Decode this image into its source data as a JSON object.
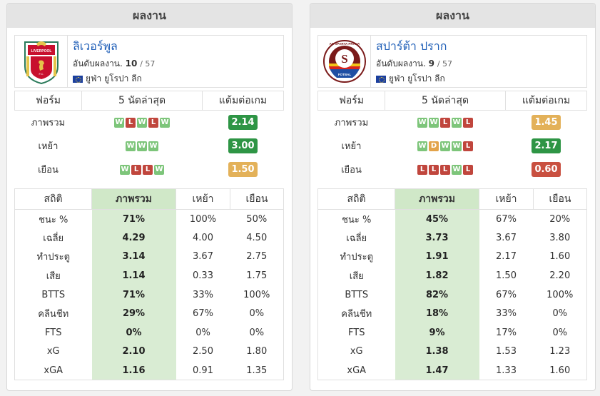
{
  "panels": [
    {
      "header": "ผลงาน",
      "team": {
        "name": "ลิเวอร์พูล",
        "rank_label": "อันดับผลงาน.",
        "rank": "10",
        "rank_total": "/ 57",
        "league": "ยูฟ่า ยูโรปา ลีก",
        "crest_icon": "liverpool-crest-icon",
        "crest_text": "LIVERPOOL",
        "crest_sub": "F.C."
      },
      "form_table": {
        "headers": [
          "ฟอร์ม",
          "5 นัดล่าสุด",
          "แต้มต่อเกม"
        ],
        "rows": [
          {
            "label": "ภาพรวม",
            "results": [
              "W",
              "L",
              "W",
              "L",
              "W"
            ],
            "ppg": "2.14",
            "ppg_color": "green"
          },
          {
            "label": "เหย้า",
            "results": [
              "W",
              "W",
              "W"
            ],
            "ppg": "3.00",
            "ppg_color": "green"
          },
          {
            "label": "เยือน",
            "results": [
              "W",
              "L",
              "L",
              "W"
            ],
            "ppg": "1.50",
            "ppg_color": "orange"
          }
        ]
      },
      "stats_table": {
        "headers": [
          "สถิติ",
          "ภาพรวม",
          "เหย้า",
          "เยือน"
        ],
        "rows": [
          [
            "ชนะ %",
            "71%",
            "100%",
            "50%"
          ],
          [
            "เฉลี่ย",
            "4.29",
            "4.00",
            "4.50"
          ],
          [
            "ทำประตู",
            "3.14",
            "3.67",
            "2.75"
          ],
          [
            "เสีย",
            "1.14",
            "0.33",
            "1.75"
          ],
          [
            "BTTS",
            "71%",
            "33%",
            "100%"
          ],
          [
            "คลีนชีท",
            "29%",
            "67%",
            "0%"
          ],
          [
            "FTS",
            "0%",
            "0%",
            "0%"
          ],
          [
            "xG",
            "2.10",
            "2.50",
            "1.80"
          ],
          [
            "xGA",
            "1.16",
            "0.91",
            "1.35"
          ]
        ]
      }
    },
    {
      "header": "ผลงาน",
      "team": {
        "name": "สปาร์ต้า ปราก",
        "rank_label": "อันดับผลงาน.",
        "rank": "9",
        "rank_total": "/ 57",
        "league": "ยูฟ่า ยูโรปา ลีก",
        "crest_icon": "sparta-prague-crest-icon",
        "crest_text": "AC SPARTA PRAHA",
        "crest_sub": "FOTBAL"
      },
      "form_table": {
        "headers": [
          "ฟอร์ม",
          "5 นัดล่าสุด",
          "แต้มต่อเกม"
        ],
        "rows": [
          {
            "label": "ภาพรวม",
            "results": [
              "W",
              "W",
              "L",
              "W",
              "L"
            ],
            "ppg": "1.45",
            "ppg_color": "orange"
          },
          {
            "label": "เหย้า",
            "results": [
              "W",
              "D",
              "W",
              "W",
              "L"
            ],
            "ppg": "2.17",
            "ppg_color": "green"
          },
          {
            "label": "เยือน",
            "results": [
              "L",
              "L",
              "L",
              "W",
              "L"
            ],
            "ppg": "0.60",
            "ppg_color": "red"
          }
        ]
      },
      "stats_table": {
        "headers": [
          "สถิติ",
          "ภาพรวม",
          "เหย้า",
          "เยือน"
        ],
        "rows": [
          [
            "ชนะ %",
            "45%",
            "67%",
            "20%"
          ],
          [
            "เฉลี่ย",
            "3.73",
            "3.67",
            "3.80"
          ],
          [
            "ทำประตู",
            "1.91",
            "2.17",
            "1.60"
          ],
          [
            "เสีย",
            "1.82",
            "1.50",
            "2.20"
          ],
          [
            "BTTS",
            "82%",
            "67%",
            "100%"
          ],
          [
            "คลีนชีท",
            "18%",
            "33%",
            "0%"
          ],
          [
            "FTS",
            "9%",
            "17%",
            "0%"
          ],
          [
            "xG",
            "1.38",
            "1.53",
            "1.23"
          ],
          [
            "xGA",
            "1.47",
            "1.33",
            "1.60"
          ]
        ]
      }
    }
  ],
  "colors": {
    "win": "#7dc57a",
    "loss": "#c0463d",
    "draw": "#e3a34a",
    "ppg_green": "#2e9545",
    "ppg_orange": "#e3b159",
    "ppg_red": "#c95040",
    "team_link": "#2160b8",
    "overall_col": "#d9ecd3"
  }
}
